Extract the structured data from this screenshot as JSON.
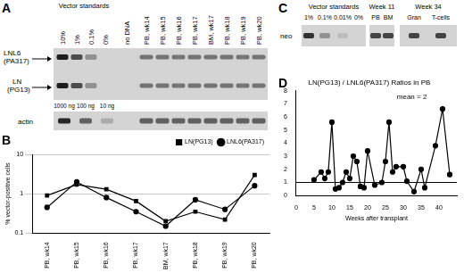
{
  "chart_data": [
    {
      "panel": "B",
      "type": "line",
      "categories": [
        "PB, wk14",
        "PB, wk15",
        "PB, wk16",
        "PB, wk17",
        "BM, wk17",
        "PB, wk18",
        "PB, wk19",
        "PB, wk20"
      ],
      "series": [
        {
          "name": "LN(PG13)",
          "color": "#000000",
          "marker": "square",
          "values": [
            0.9,
            1.7,
            1.3,
            0.65,
            0.2,
            0.35,
            0.22,
            3.0
          ]
        },
        {
          "name": "LNL6(PA317)",
          "color": "#000000",
          "marker": "circle",
          "values": [
            0.45,
            2.0,
            0.8,
            0.35,
            0.15,
            0.7,
            0.4,
            1.6
          ]
        }
      ],
      "y_label": "% vector-positive cells",
      "log": "y",
      "ylim": [
        0.1,
        10
      ],
      "yticks": [
        0.1,
        1,
        10
      ],
      "grid": true,
      "legend": "top"
    },
    {
      "panel": "D",
      "type": "line",
      "title": "LN(PG13) / LNL6(PA317) Ratios in PB",
      "x_label": "Weeks after transplant",
      "x": [
        5,
        7,
        8,
        9,
        10,
        11,
        12,
        13,
        14,
        15,
        16,
        17,
        18,
        19,
        20,
        22,
        24,
        25,
        26,
        27,
        28,
        30,
        31,
        33,
        35,
        36,
        39,
        41,
        43
      ],
      "values": [
        1.2,
        1.8,
        1.3,
        1.8,
        5.6,
        0.5,
        0.6,
        1.0,
        1.8,
        1.3,
        3.0,
        2.6,
        0.7,
        0.6,
        3.4,
        0.8,
        1.0,
        2.6,
        5.6,
        1.8,
        2.2,
        2.2,
        1.1,
        0.3,
        2.0,
        0.6,
        3.8,
        6.6,
        1.6
      ],
      "color": "#000000",
      "marker": "circle",
      "hline": 1,
      "annotations": [
        "mean = 2"
      ],
      "xlim": [
        0,
        45
      ],
      "xticks": [
        0,
        5,
        10,
        15,
        20,
        25,
        30,
        35,
        40
      ],
      "ylim": [
        0,
        8
      ],
      "yticks": [
        0,
        1,
        2,
        3,
        4,
        5,
        6,
        7,
        8
      ],
      "grid": false
    }
  ],
  "panel_a": {
    "panel": "A",
    "standards": {
      "title": "Vector standards",
      "lanes": [
        "10%",
        "1%",
        "0.1%",
        "0%"
      ]
    },
    "control": "no DNA",
    "samples": [
      "PB, wk14",
      "PB, wk15",
      "PB, wk16",
      "PB, wk17",
      "BM, wk17",
      "PB, wk18",
      "PB, wk19",
      "PB, wk20"
    ],
    "bands": [
      {
        "name": "LNL6",
        "source": "(PA317)"
      },
      {
        "name": "LN",
        "source": "(PG13)"
      }
    ],
    "actin": {
      "label": "actin",
      "standards": [
        "1000 ng",
        "100 ng",
        "10 ng"
      ]
    }
  },
  "panel_c": {
    "panel": "C",
    "label": "neo",
    "groups": [
      {
        "title": "Vector standards",
        "lanes": [
          "1%",
          "0.1%",
          "0.01%",
          "0%"
        ]
      },
      {
        "title": "Week 11",
        "lanes": [
          "PB",
          "BM"
        ]
      },
      {
        "title": "Week 34",
        "lanes": [
          "Gran",
          "T-cells"
        ]
      }
    ]
  }
}
